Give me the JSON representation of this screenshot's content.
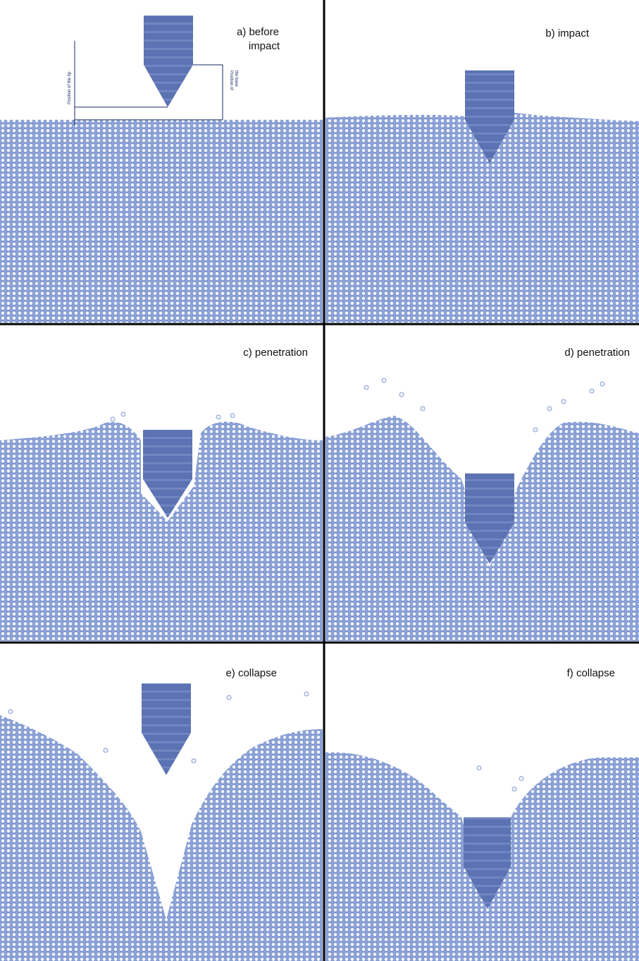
{
  "panels": [
    {
      "label": [
        "a) before",
        "impact"
      ]
    },
    {
      "label": [
        "b) impact"
      ]
    },
    {
      "label": [
        "c) penetration"
      ]
    },
    {
      "label": [
        "d) penetration"
      ]
    },
    {
      "label": [
        "e) collapse"
      ]
    },
    {
      "label": [
        "f) collapse"
      ]
    }
  ],
  "annotations": {
    "tip": "Position of the tip",
    "base": [
      "Position of",
      "the base"
    ]
  }
}
